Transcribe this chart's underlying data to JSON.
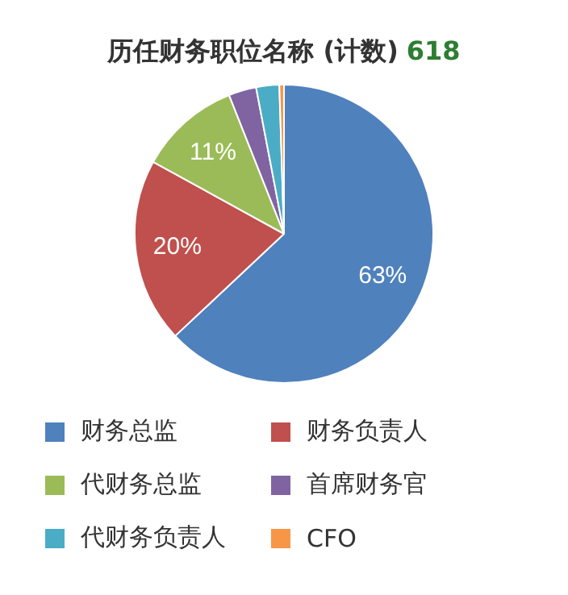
{
  "chart_data": {
    "type": "pie",
    "title": "历任财务职位名称 (计数)",
    "annotations": [
      "618"
    ],
    "categories": [
      "财务总监",
      "财务负责人",
      "代财务总监",
      "首席财务官",
      "代财务负责人",
      "CFO"
    ],
    "values": [
      63,
      20,
      11,
      3,
      2.5,
      0.5
    ],
    "colors": [
      "#4f81bd",
      "#c0504d",
      "#9bbb59",
      "#8064a2",
      "#4bacc6",
      "#f79646"
    ],
    "value_labels": [
      "63%",
      "20%",
      "11%",
      null,
      null,
      null
    ],
    "legend": "bottom"
  }
}
